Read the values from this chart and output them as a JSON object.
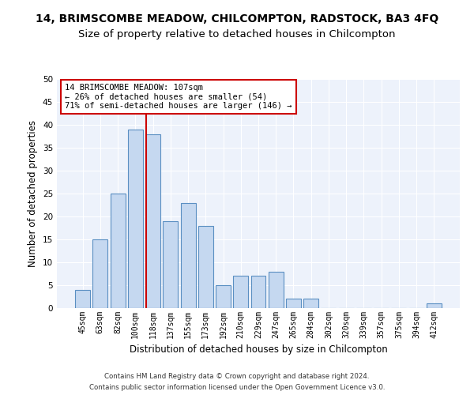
{
  "title": "14, BRIMSCOMBE MEADOW, CHILCOMPTON, RADSTOCK, BA3 4FQ",
  "subtitle": "Size of property relative to detached houses in Chilcompton",
  "xlabel": "Distribution of detached houses by size in Chilcompton",
  "ylabel": "Number of detached properties",
  "categories": [
    "45sqm",
    "63sqm",
    "82sqm",
    "100sqm",
    "118sqm",
    "137sqm",
    "155sqm",
    "173sqm",
    "192sqm",
    "210sqm",
    "229sqm",
    "247sqm",
    "265sqm",
    "284sqm",
    "302sqm",
    "320sqm",
    "339sqm",
    "357sqm",
    "375sqm",
    "394sqm",
    "412sqm"
  ],
  "values": [
    4,
    15,
    25,
    39,
    38,
    19,
    23,
    18,
    5,
    7,
    7,
    8,
    2,
    2,
    0,
    0,
    0,
    0,
    0,
    0,
    1
  ],
  "bar_color": "#c5d8f0",
  "bar_edge_color": "#5a8fc2",
  "bar_edge_width": 0.8,
  "vline_x": 3.62,
  "vline_color": "#cc0000",
  "annotation_line1": "14 BRIMSCOMBE MEADOW: 107sqm",
  "annotation_line2": "← 26% of detached houses are smaller (54)",
  "annotation_line3": "71% of semi-detached houses are larger (146) →",
  "ylim": [
    0,
    50
  ],
  "yticks": [
    0,
    5,
    10,
    15,
    20,
    25,
    30,
    35,
    40,
    45,
    50
  ],
  "background_color": "#edf2fb",
  "footer_line1": "Contains HM Land Registry data © Crown copyright and database right 2024.",
  "footer_line2": "Contains public sector information licensed under the Open Government Licence v3.0.",
  "title_fontsize": 10,
  "subtitle_fontsize": 9.5,
  "xlabel_fontsize": 8.5,
  "ylabel_fontsize": 8.5,
  "tick_fontsize": 7,
  "annot_fontsize": 7.5
}
